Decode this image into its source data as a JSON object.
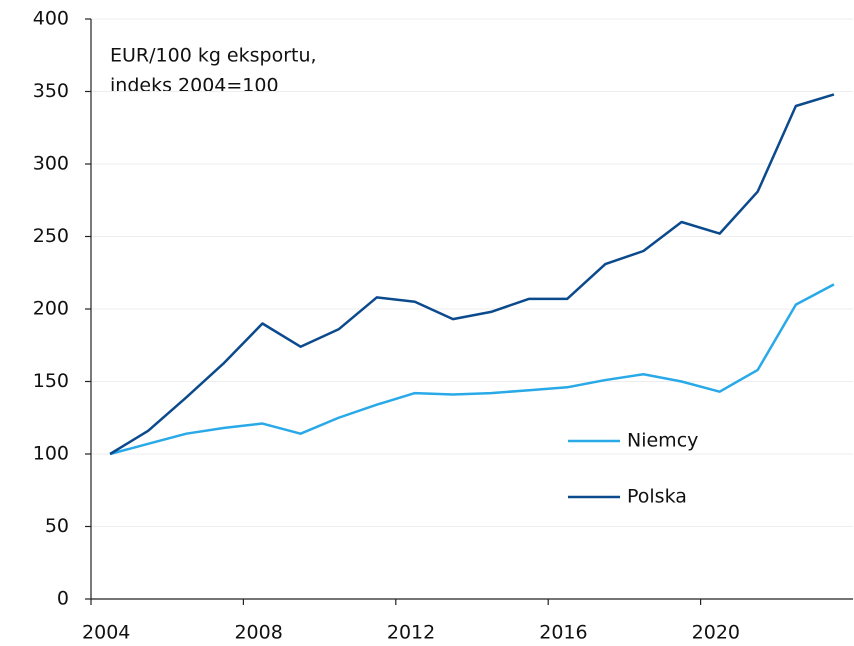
{
  "chart_data": {
    "type": "line",
    "annotations": [
      "EUR/100 kg eksportu,",
      "indeks 2004=100"
    ],
    "categories": [
      "2004",
      null,
      null,
      null,
      "2008",
      null,
      null,
      null,
      "2012",
      null,
      null,
      null,
      "2016",
      null,
      null,
      null,
      "2020",
      null,
      null,
      null
    ],
    "series": [
      {
        "name": "Niemcy",
        "color": "#29a9e8",
        "values": [
          100,
          107,
          114,
          118,
          121,
          114,
          125,
          134,
          142,
          141,
          142,
          144,
          146,
          151,
          155,
          150,
          143,
          158,
          203,
          217
        ]
      },
      {
        "name": "Polska",
        "color": "#0b4a8c",
        "values": [
          100,
          116,
          139,
          163,
          190,
          174,
          186,
          208,
          205,
          193,
          198,
          207,
          207,
          231,
          240,
          260,
          252,
          281,
          340,
          348
        ]
      }
    ],
    "ylim": [
      0,
      400
    ],
    "yticks": [
      0,
      50,
      100,
      150,
      200,
      250,
      300,
      350,
      400
    ],
    "grid": true
  }
}
